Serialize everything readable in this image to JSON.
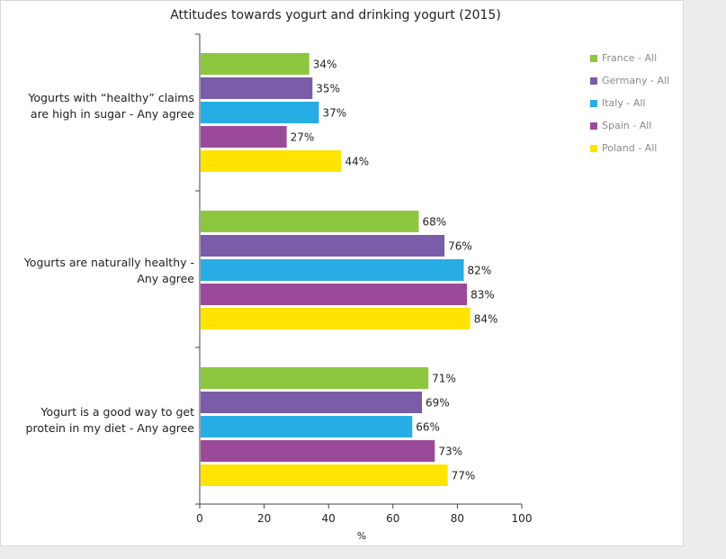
{
  "chart_data": {
    "type": "bar",
    "orientation": "horizontal",
    "title": "Attitudes towards yogurt and drinking yogurt (2015)",
    "xlabel": "%",
    "ylabel": "",
    "xlim": [
      0,
      100
    ],
    "xticks": [
      0,
      20,
      40,
      60,
      80,
      100
    ],
    "categories": [
      "Yogurts with “healthy” claims are high in sugar - Any agree",
      "Yogurts are naturally healthy - Any agree",
      "Yogurt is a good way to get protein in my diet - Any agree"
    ],
    "series": [
      {
        "name": "France - All",
        "color": "#8dc63f",
        "values": [
          34,
          68,
          71
        ]
      },
      {
        "name": "Germany - All",
        "color": "#7a5ca8",
        "values": [
          35,
          76,
          69
        ]
      },
      {
        "name": "Italy - All",
        "color": "#27ade3",
        "values": [
          37,
          82,
          66
        ]
      },
      {
        "name": "Spain - All",
        "color": "#9b4a9a",
        "values": [
          27,
          83,
          73
        ]
      },
      {
        "name": "Poland - All",
        "color": "#ffe400",
        "values": [
          44,
          84,
          77
        ]
      }
    ],
    "value_suffix": "%",
    "grid": false,
    "legend_position": "right"
  }
}
